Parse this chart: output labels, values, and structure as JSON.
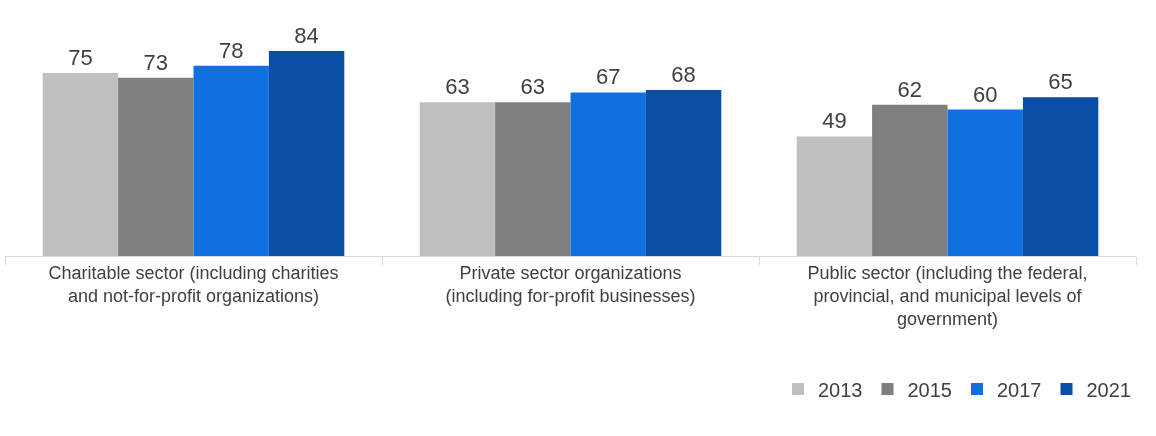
{
  "chart_data": {
    "type": "bar",
    "categories": [
      "Charitable sector (including charities and not-for-profit organizations)",
      "Private sector organizations (including for-profit businesses)",
      "Public sector (including the federal, provincial, and municipal levels of government)"
    ],
    "series": [
      {
        "name": "2013",
        "color": "#bfbfbf",
        "values": [
          75,
          63,
          49
        ]
      },
      {
        "name": "2015",
        "color": "#7f7f7f",
        "values": [
          73,
          63,
          62
        ]
      },
      {
        "name": "2017",
        "color": "#1170e0",
        "values": [
          78,
          67,
          60
        ]
      },
      {
        "name": "2021",
        "color": "#0a4ea6",
        "values": [
          84,
          68,
          65
        ]
      }
    ],
    "data_labels": true,
    "legend": "bottom right"
  }
}
